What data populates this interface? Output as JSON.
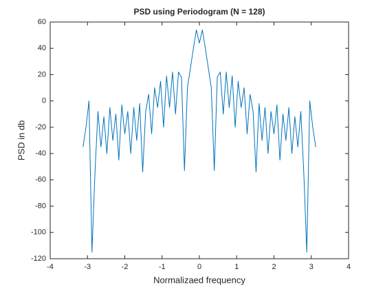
{
  "chart_data": {
    "type": "line",
    "title": "PSD using Periodogram (N = 128)",
    "xlabel": "Normalizaed frequency",
    "ylabel": "PSD in db",
    "x": [
      -3.12,
      -3.04,
      -2.96,
      -2.88,
      -2.8,
      -2.72,
      -2.64,
      -2.56,
      -2.48,
      -2.4,
      -2.32,
      -2.24,
      -2.16,
      -2.08,
      -2.0,
      -1.92,
      -1.84,
      -1.76,
      -1.68,
      -1.6,
      -1.52,
      -1.44,
      -1.36,
      -1.28,
      -1.2,
      -1.12,
      -1.04,
      -0.96,
      -0.88,
      -0.8,
      -0.72,
      -0.64,
      -0.56,
      -0.48,
      -0.4,
      -0.32,
      -0.24,
      -0.16,
      -0.08,
      0,
      0.08,
      0.16,
      0.24,
      0.32,
      0.4,
      0.48,
      0.56,
      0.64,
      0.72,
      0.8,
      0.88,
      0.96,
      1.04,
      1.12,
      1.2,
      1.28,
      1.36,
      1.44,
      1.52,
      1.6,
      1.68,
      1.76,
      1.84,
      1.92,
      2.0,
      2.08,
      2.16,
      2.24,
      2.32,
      2.4,
      2.48,
      2.56,
      2.64,
      2.72,
      2.8,
      2.88,
      2.96,
      3.04,
      3.12
    ],
    "series": [
      {
        "name": "PSD",
        "color": "#0072bd",
        "values": [
          -35,
          -20,
          0,
          -115,
          -55,
          -8,
          -35,
          -12,
          -40,
          -5,
          -30,
          -10,
          -45,
          -3,
          -25,
          -8,
          -40,
          -5,
          -30,
          -2,
          -54,
          -8,
          5,
          -25,
          10,
          -5,
          15,
          -20,
          19,
          -5,
          22,
          -10,
          22,
          18,
          -53,
          10,
          25,
          40,
          54,
          44,
          54,
          40,
          25,
          10,
          -53,
          18,
          22,
          -10,
          22,
          -5,
          19,
          -20,
          15,
          -5,
          10,
          -25,
          5,
          -8,
          -54,
          -2,
          -30,
          -5,
          -40,
          -8,
          -25,
          -3,
          -45,
          -10,
          -30,
          -5,
          -40,
          -12,
          -35,
          -8,
          -55,
          -115,
          0,
          -20,
          -35
        ]
      }
    ],
    "xlim": [
      -4,
      4
    ],
    "xticks": [
      -4,
      -3,
      -2,
      -1,
      0,
      1,
      2,
      3,
      4
    ],
    "ylim": [
      -120,
      60
    ],
    "yticks": [
      -120,
      -100,
      -80,
      -60,
      -40,
      -20,
      0,
      20,
      40,
      60
    ],
    "grid": false
  }
}
